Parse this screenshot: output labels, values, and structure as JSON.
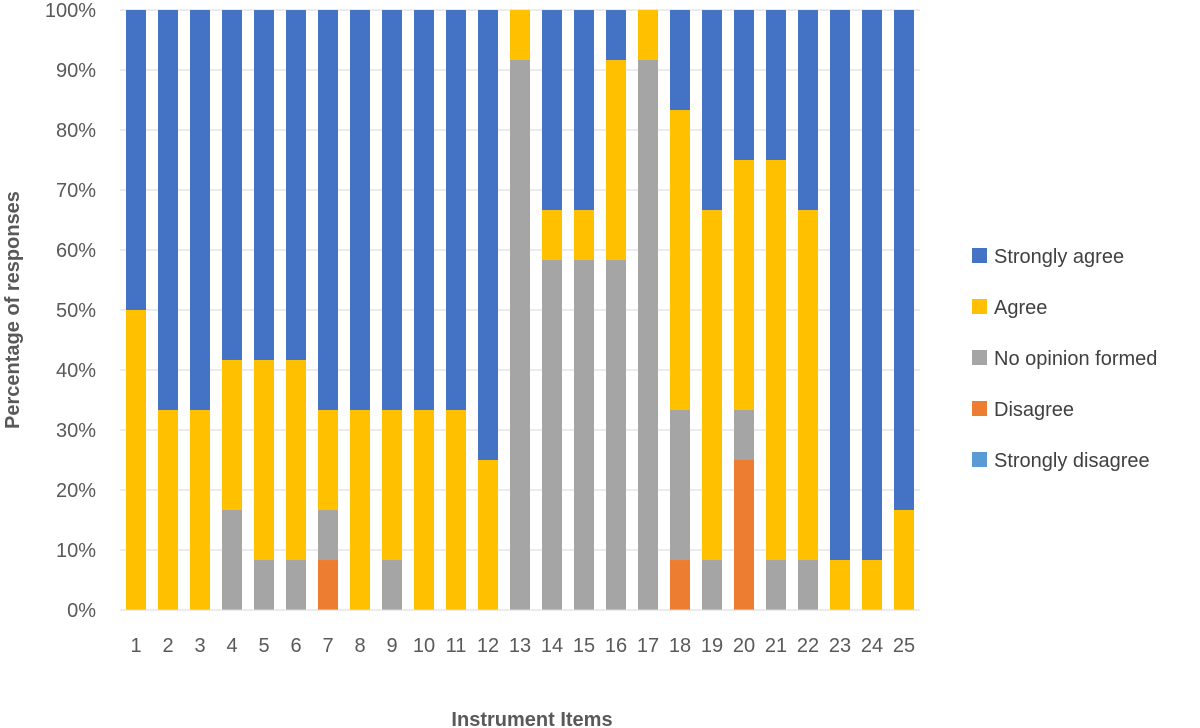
{
  "chart_data": {
    "type": "bar",
    "stacked": true,
    "percent": true,
    "xlabel": "Instrument Items",
    "ylabel": "Percentage of responses",
    "ylim": [
      0,
      100
    ],
    "yticks": [
      "0%",
      "10%",
      "20%",
      "30%",
      "40%",
      "50%",
      "60%",
      "70%",
      "80%",
      "90%",
      "100%"
    ],
    "ytick_values": [
      0,
      10,
      20,
      30,
      40,
      50,
      60,
      70,
      80,
      90,
      100
    ],
    "grid": true,
    "legend_position": "right",
    "categories": [
      "1",
      "2",
      "3",
      "4",
      "5",
      "6",
      "7",
      "8",
      "9",
      "10",
      "11",
      "12",
      "13",
      "14",
      "15",
      "16",
      "17",
      "18",
      "19",
      "20",
      "21",
      "22",
      "23",
      "24",
      "25"
    ],
    "series": [
      {
        "name": "Strongly disagree",
        "color": "#5b9bd5",
        "values": [
          0,
          0,
          0,
          0,
          0,
          0,
          0,
          0,
          0,
          0,
          0,
          0,
          0,
          0,
          0,
          0,
          0,
          0,
          0,
          0,
          0,
          0,
          0,
          0,
          0
        ]
      },
      {
        "name": "Disagree",
        "color": "#ed7d31",
        "values": [
          0,
          0,
          0,
          0,
          0,
          0,
          8.33,
          0,
          0,
          0,
          0,
          0,
          0,
          0,
          0,
          0,
          0,
          8.33,
          0,
          25,
          0,
          0,
          0,
          0,
          0
        ]
      },
      {
        "name": "No opinion formed",
        "color": "#a5a5a5",
        "values": [
          0,
          0,
          0,
          16.67,
          8.33,
          8.33,
          8.33,
          0,
          8.33,
          0,
          0,
          0,
          91.67,
          58.33,
          58.33,
          58.33,
          91.67,
          25,
          8.33,
          8.33,
          8.33,
          8.33,
          0,
          0,
          0
        ]
      },
      {
        "name": "Agree",
        "color": "#ffc000",
        "values": [
          50,
          33.33,
          33.33,
          25,
          33.33,
          33.33,
          16.67,
          33.33,
          25,
          33.33,
          33.33,
          25,
          8.33,
          8.33,
          8.33,
          33.33,
          8.33,
          50,
          58.33,
          41.67,
          66.67,
          58.33,
          8.33,
          8.33,
          16.67
        ]
      },
      {
        "name": "Strongly agree",
        "color": "#4472c4",
        "values": [
          50,
          66.67,
          66.67,
          58.33,
          58.33,
          58.33,
          66.67,
          66.67,
          66.67,
          66.67,
          66.67,
          75,
          0,
          33.33,
          33.33,
          8.33,
          0,
          16.67,
          33.33,
          25,
          25,
          33.33,
          91.67,
          91.67,
          83.33
        ]
      }
    ],
    "legend_order": [
      "Strongly agree",
      "Agree",
      "No opinion formed",
      "Disagree",
      "Strongly disagree"
    ]
  }
}
